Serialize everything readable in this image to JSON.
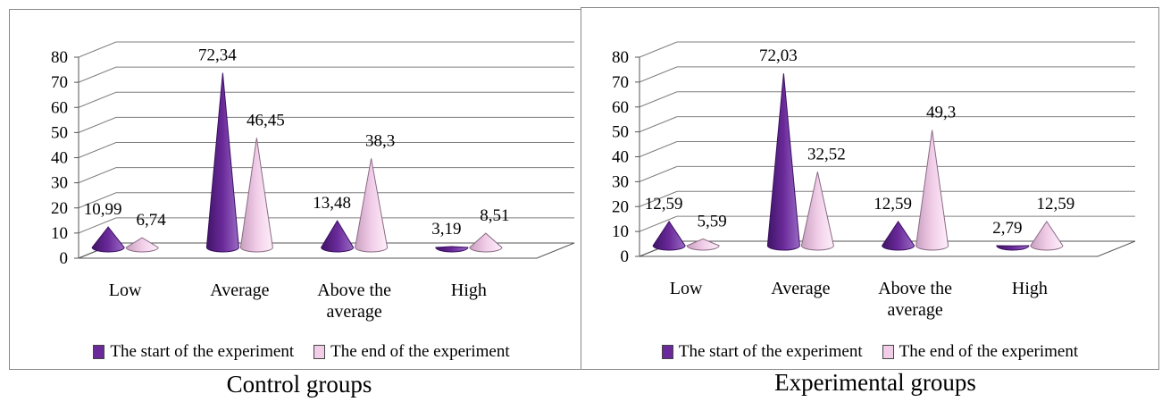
{
  "colors": {
    "start": "#6a2a9a",
    "end": "#f1cde8",
    "grid": "#7f7f7f"
  },
  "chart_data": [
    {
      "type": "bar",
      "subtype": "3d-cone",
      "title": "Control groups",
      "categories": [
        "Low",
        "Average",
        "Above the average",
        "High"
      ],
      "category_lines": [
        [
          "Low"
        ],
        [
          "Average"
        ],
        [
          "Above the",
          "average"
        ],
        [
          "High"
        ]
      ],
      "series": [
        {
          "name": "The start of the experiment",
          "values": [
            10.99,
            72.34,
            13.48,
            3.19
          ],
          "labels": [
            "10,99",
            "72,34",
            "13,48",
            "3,19"
          ]
        },
        {
          "name": "The end of the experiment",
          "values": [
            6.74,
            46.45,
            38.3,
            8.51
          ],
          "labels": [
            "6,74",
            "46,45",
            "38,3",
            "8,51"
          ]
        }
      ],
      "ylim": [
        0,
        80
      ],
      "yticks": [
        "0",
        "10",
        "20",
        "30",
        "40",
        "50",
        "60",
        "70",
        "80"
      ],
      "grid": true,
      "legend_position": "bottom"
    },
    {
      "type": "bar",
      "subtype": "3d-cone",
      "title": "Experimental groups",
      "categories": [
        "Low",
        "Average",
        "Above the average",
        "High"
      ],
      "category_lines": [
        [
          "Low"
        ],
        [
          "Average"
        ],
        [
          "Above the",
          "average"
        ],
        [
          "High"
        ]
      ],
      "series": [
        {
          "name": "The start of the experiment",
          "values": [
            12.59,
            72.03,
            12.59,
            2.79
          ],
          "labels": [
            "12,59",
            "72,03",
            "12,59",
            "2,79"
          ]
        },
        {
          "name": "The end of the experiment",
          "values": [
            5.59,
            32.52,
            49.3,
            12.59
          ],
          "labels": [
            "5,59",
            "32,52",
            "49,3",
            "12,59"
          ]
        }
      ],
      "ylim": [
        0,
        80
      ],
      "yticks": [
        "0",
        "10",
        "20",
        "30",
        "40",
        "50",
        "60",
        "70",
        "80"
      ],
      "grid": true,
      "legend_position": "bottom"
    }
  ]
}
